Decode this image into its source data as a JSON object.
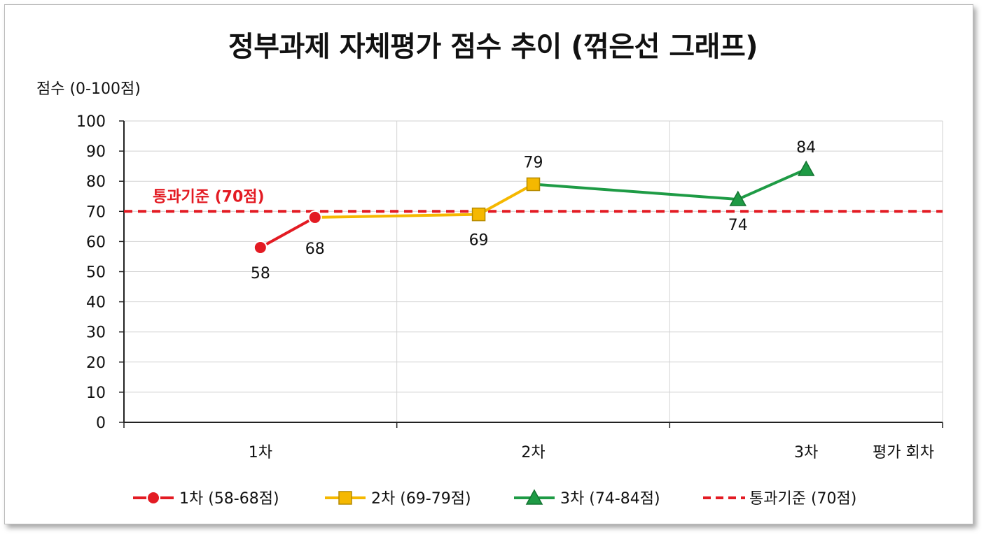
{
  "chart_data": {
    "type": "line",
    "title": "정부과제 자체평가 점수 추이 (꺾은선 그래프)",
    "ylabel": "점수 (0-100점)",
    "xlabel": "평가 회차",
    "ylim": [
      0,
      100
    ],
    "yticks": [
      "0",
      "10",
      "20",
      "30",
      "40",
      "50",
      "60",
      "70",
      "80",
      "90",
      "100"
    ],
    "categories": [
      "1차",
      "2차",
      "3차"
    ],
    "grid": true,
    "legend_position": "bottom",
    "series": [
      {
        "name": "1차 (58-68점)",
        "color": "#e31b23",
        "marker": "circle",
        "points": [
          {
            "x": 0.0,
            "y": 58,
            "label": "58"
          },
          {
            "x": 0.2,
            "y": 68,
            "label": "68"
          }
        ]
      },
      {
        "name": "2차 (69-79점)",
        "color": "#f5b800",
        "marker": "square",
        "points": [
          {
            "x": 0.8,
            "y": 69,
            "label": "69"
          },
          {
            "x": 1.0,
            "y": 79,
            "label": "79"
          }
        ]
      },
      {
        "name": "3차 (74-84점)",
        "color": "#1e9b45",
        "marker": "triangle",
        "points": [
          {
            "x": 1.75,
            "y": 74,
            "label": "74"
          },
          {
            "x": 2.0,
            "y": 84,
            "label": "84"
          }
        ]
      }
    ],
    "threshold": {
      "name": "통과기준 (70점)",
      "value": 70,
      "color": "#e31b23",
      "label": "통과기준 (70점)"
    }
  }
}
